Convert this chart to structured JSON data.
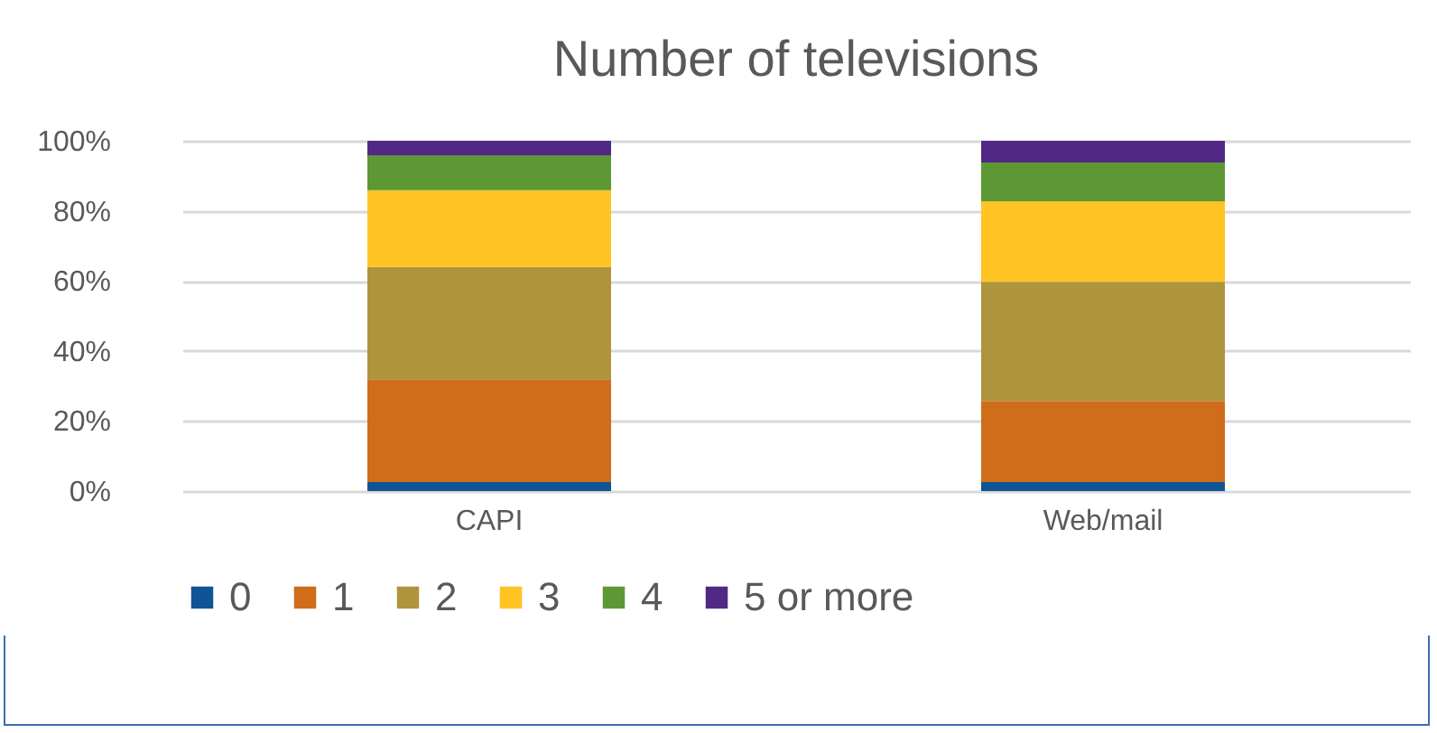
{
  "chart_data": {
    "type": "bar",
    "title": "Number of televisions",
    "categories": [
      "CAPI",
      "Web/mail"
    ],
    "stacked": true,
    "series": [
      {
        "name": "0",
        "color": "#0f5495",
        "values": [
          2.6,
          2.6
        ]
      },
      {
        "name": "1",
        "color": "#cf6d1b",
        "values": [
          29.3,
          23.1
        ]
      },
      {
        "name": "2",
        "color": "#ae943c",
        "values": [
          32.1,
          34.0
        ]
      },
      {
        "name": "3",
        "color": "#ffc324",
        "values": [
          21.9,
          23.0
        ]
      },
      {
        "name": "4",
        "color": "#5e9834",
        "values": [
          10.0,
          11.1
        ]
      },
      {
        "name": "5 or more",
        "color": "#512885",
        "values": [
          4.1,
          6.2
        ]
      }
    ],
    "ylim": [
      0,
      100
    ],
    "yticks": [
      {
        "value": 0,
        "label": "0%"
      },
      {
        "value": 20,
        "label": "20%"
      },
      {
        "value": 40,
        "label": "40%"
      },
      {
        "value": 60,
        "label": "60%"
      },
      {
        "value": 80,
        "label": "80%"
      },
      {
        "value": 100,
        "label": "100%"
      }
    ],
    "grid": "y",
    "legend": "bottom"
  }
}
